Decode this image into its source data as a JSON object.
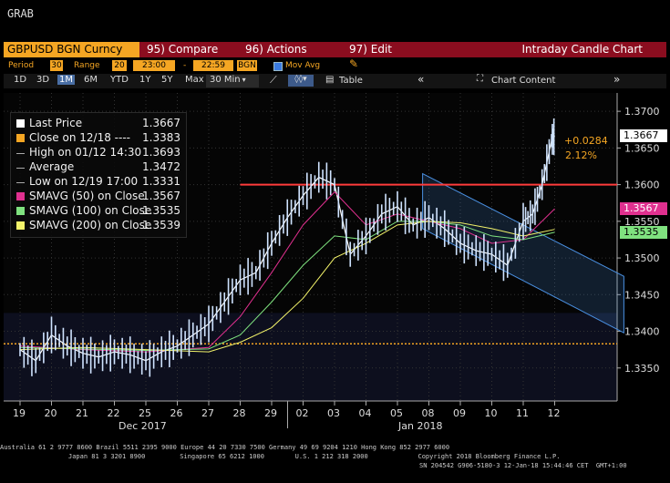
{
  "app_title": "GRAB",
  "toolbar": {
    "security": "GBPUSD BGN Curncy",
    "compare": "95) Compare",
    "actions": "96) Actions",
    "edit": "97) Edit",
    "chart_name": "Intraday Candle Chart"
  },
  "params": {
    "period_label": "Period",
    "period_value": "30",
    "range_label": "Range",
    "range_value": "20",
    "time_start": "23:00",
    "dash": "-",
    "time_end": "22:59",
    "source": "BGN",
    "mov_avg_label": "Mov Avg"
  },
  "range_tabs": [
    "1D",
    "3D",
    "1M",
    "6M",
    "YTD",
    "1Y",
    "5Y",
    "Max"
  ],
  "interval": "30 Min",
  "table_label": "Table",
  "chart_content_label": "Chart Content",
  "legend": {
    "items": [
      {
        "label": "Last Price",
        "value": "1.3667",
        "color": "#ffffff"
      },
      {
        "label": "Close on 12/18 ----",
        "value": "1.3383",
        "color": "#f5a623"
      },
      {
        "label": "High on 01/12 14:30",
        "value": "1.3693",
        "color": "#aaaaaa"
      },
      {
        "label": "Average",
        "value": "1.3472",
        "color": "#aaaaaa"
      },
      {
        "label": "Low on 12/19 17:00",
        "value": "1.3331",
        "color": "#aaaaaa"
      },
      {
        "label": "SMAVG (50) on Close",
        "value": "1.3567",
        "color": "#e0308f"
      },
      {
        "label": "SMAVG (100) on Close",
        "value": "1.3535",
        "color": "#7fe27f"
      },
      {
        "label": "SMAVG (200) on Close",
        "value": "1.3539",
        "color": "#f3f36a"
      }
    ]
  },
  "annotation": {
    "change": "+0.0284",
    "pct": "2.12%"
  },
  "price_tags": [
    {
      "value": "1.3667",
      "bg": "#ffffff",
      "fg": "#000000"
    },
    {
      "value": "1.3567",
      "bg": "#e0308f",
      "fg": "#ffffff"
    },
    {
      "value": "1.3535",
      "bg": "#7fe27f",
      "fg": "#000000"
    }
  ],
  "colors": {
    "last": "#ffffff",
    "sma50": "#e0308f",
    "sma100": "#7fe27f",
    "sma200": "#f3f36a",
    "resistance": "#ff3b3b",
    "close_line": "#f5a623",
    "channel": "#4a90e2"
  },
  "chart_data": {
    "type": "line",
    "yticks": [
      "1.3700",
      "1.3650",
      "1.3600",
      "1.3550",
      "1.3500",
      "1.3450",
      "1.3400",
      "1.3350"
    ],
    "ylim": [
      1.3305,
      1.3725
    ],
    "x_day_labels": [
      "19",
      "20",
      "21",
      "22",
      "25",
      "26",
      "27",
      "28",
      "29",
      "02",
      "03",
      "04",
      "05",
      "08",
      "09",
      "10",
      "11",
      "12"
    ],
    "x_month_labels": [
      "Dec 2017",
      "Jan 2018"
    ],
    "series": [
      {
        "name": "Last Price",
        "x": [
          0,
          0.5,
          1,
          1.5,
          2,
          2.5,
          3,
          3.5,
          4,
          4.5,
          5,
          5.5,
          6,
          6.5,
          7,
          7.5,
          8,
          8.5,
          9,
          9.5,
          10,
          10.5,
          11,
          11.5,
          12,
          12.5,
          13,
          13.5,
          14,
          14.5,
          15,
          15.5,
          16,
          16.3,
          16.6,
          16.9,
          17
        ],
        "y": [
          1.3375,
          1.336,
          1.3395,
          1.338,
          1.337,
          1.3365,
          1.3372,
          1.3368,
          1.336,
          1.3372,
          1.338,
          1.3395,
          1.341,
          1.344,
          1.347,
          1.348,
          1.352,
          1.3555,
          1.3585,
          1.361,
          1.36,
          1.3505,
          1.353,
          1.356,
          1.357,
          1.3545,
          1.3555,
          1.354,
          1.352,
          1.351,
          1.3505,
          1.349,
          1.355,
          1.356,
          1.36,
          1.366,
          1.3667
        ]
      },
      {
        "name": "SMAVG (50) on Close",
        "x": [
          0,
          2,
          4,
          6,
          7,
          8,
          9,
          10,
          11,
          12,
          13,
          14,
          15,
          16,
          17
        ],
        "y": [
          1.338,
          1.3375,
          1.3372,
          1.3378,
          1.342,
          1.348,
          1.3545,
          1.359,
          1.3545,
          1.356,
          1.355,
          1.354,
          1.352,
          1.3525,
          1.3567
        ]
      },
      {
        "name": "SMAVG (100) on Close",
        "x": [
          0,
          2,
          4,
          6,
          7,
          8,
          9,
          10,
          11,
          12,
          13,
          14,
          15,
          16,
          17
        ],
        "y": [
          1.3378,
          1.3376,
          1.3374,
          1.3376,
          1.3395,
          1.344,
          1.349,
          1.353,
          1.3525,
          1.355,
          1.355,
          1.3545,
          1.353,
          1.3525,
          1.3535
        ]
      },
      {
        "name": "SMAVG (200) on Close",
        "x": [
          0,
          2,
          4,
          6,
          7,
          8,
          9,
          10,
          11,
          12,
          13,
          14,
          15,
          16,
          17
        ],
        "y": [
          1.3375,
          1.3378,
          1.3375,
          1.3372,
          1.3385,
          1.3405,
          1.3445,
          1.35,
          1.352,
          1.3545,
          1.355,
          1.3548,
          1.354,
          1.353,
          1.3539
        ]
      }
    ],
    "reference_lines": [
      {
        "label": "Close on 12/18",
        "y": 1.3383
      },
      {
        "y": 1.36
      }
    ],
    "grid": true,
    "legend_position": "top-left"
  },
  "footer": {
    "line1": "Australia 61 2 9777 8600 Brazil 5511 2395 9000 Europe 44 20 7330 7500 Germany 49 69 9204 1210 Hong Kong 852 2977 6000",
    "line2": "Japan 81 3 3201 8900         Singapore 65 6212 1000        U.S. 1 212 318 2000             Copyright 2018 Bloomberg Finance L.P.",
    "line3": "SN 204542 G906-5180-3 12-Jan-18 15:44:46 CET  GMT+1:00"
  }
}
